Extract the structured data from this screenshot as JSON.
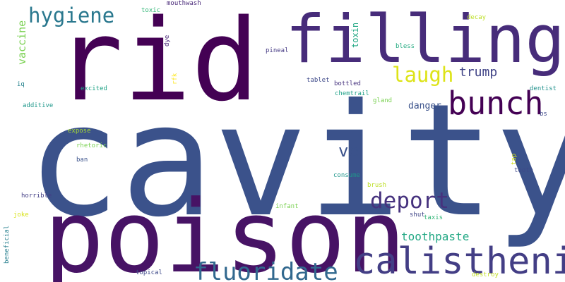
{
  "words": [
    {
      "text": "cavity",
      "color": "#3b528b"
    },
    {
      "text": "rid",
      "color": "#440154"
    },
    {
      "text": "poison",
      "color": "#471365"
    },
    {
      "text": "filling",
      "color": "#472c7a"
    },
    {
      "text": "calisthenic",
      "color": "#433e85"
    },
    {
      "text": "bunch",
      "color": "#440154"
    },
    {
      "text": "fluoridate",
      "color": "#31688e"
    },
    {
      "text": "deport",
      "color": "#46327e"
    },
    {
      "text": "hygiene",
      "color": "#2a788e"
    },
    {
      "text": "laugh",
      "color": "#dde318"
    },
    {
      "text": "ve",
      "color": "#3b528b"
    },
    {
      "text": "trump",
      "color": "#414487"
    },
    {
      "text": "toothpaste",
      "color": "#22a884"
    },
    {
      "text": "vaccine",
      "color": "#7ad151"
    },
    {
      "text": "danger",
      "color": "#3b528b"
    },
    {
      "text": "toxin",
      "color": "#22a884"
    },
    {
      "text": "mouthwash",
      "color": "#482878"
    },
    {
      "text": "toxic",
      "color": "#35b779"
    },
    {
      "text": "decay",
      "color": "#bddf26"
    },
    {
      "text": "dye",
      "color": "#482878"
    },
    {
      "text": "bless",
      "color": "#25ab82"
    },
    {
      "text": "pineal",
      "color": "#443983"
    },
    {
      "text": "rfk",
      "color": "#fde725"
    },
    {
      "text": "iq",
      "color": "#26828e"
    },
    {
      "text": "excited",
      "color": "#20a386"
    },
    {
      "text": "tablet",
      "color": "#3e4989"
    },
    {
      "text": "chemtrail",
      "color": "#1fa187"
    },
    {
      "text": "bottled",
      "color": "#46327e"
    },
    {
      "text": "dentist",
      "color": "#21918c"
    },
    {
      "text": "additive",
      "color": "#1f988b"
    },
    {
      "text": "gland",
      "color": "#7ad151"
    },
    {
      "text": "bs",
      "color": "#3e4989"
    },
    {
      "text": "expose",
      "color": "#a8db34"
    },
    {
      "text": "rhetoric",
      "color": "#7ad151"
    },
    {
      "text": "ban",
      "color": "#3b528b"
    },
    {
      "text": "tap",
      "color": "#d2e21b"
    },
    {
      "text": "tooth",
      "color": "#3e4989"
    },
    {
      "text": "consume",
      "color": "#1f968b"
    },
    {
      "text": "horrible",
      "color": "#433e85"
    },
    {
      "text": "brush",
      "color": "#bddf26"
    },
    {
      "text": "infant",
      "color": "#7ad151"
    },
    {
      "text": "joke",
      "color": "#d8e219"
    },
    {
      "text": "shut",
      "color": "#404688"
    },
    {
      "text": "taxis",
      "color": "#35b779"
    },
    {
      "text": "beneficial",
      "color": "#277f8e"
    },
    {
      "text": "topical",
      "color": "#3e4989"
    },
    {
      "text": "destroy",
      "color": "#c2df23"
    }
  ]
}
